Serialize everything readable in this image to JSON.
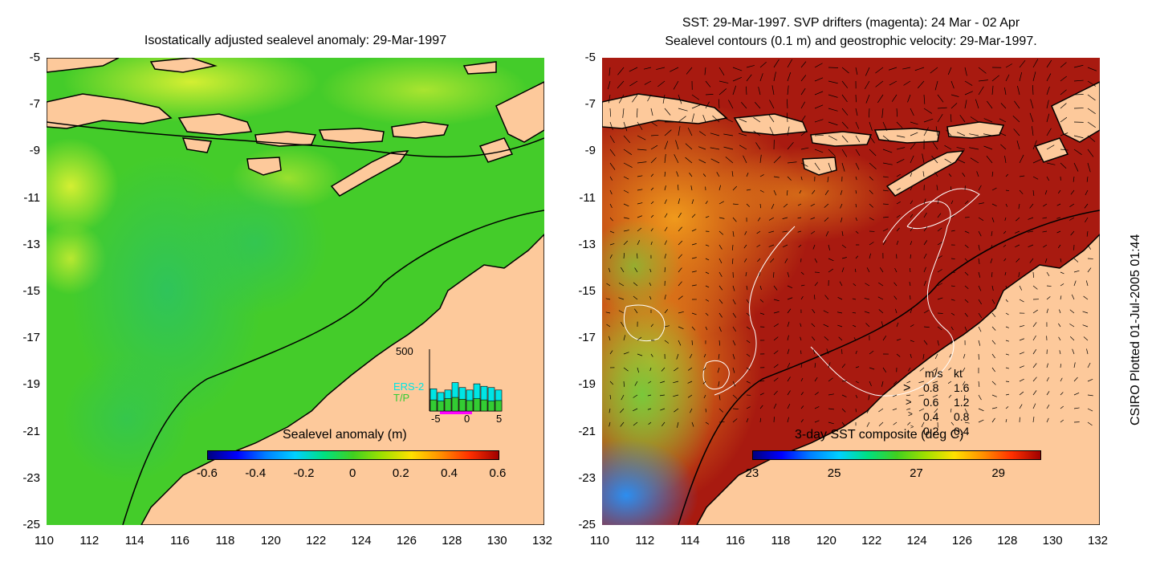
{
  "left_panel": {
    "title": "Isostatically adjusted sealevel anomaly: 29-Mar-1997",
    "colorbar": {
      "label": "Sealevel anomaly (m)",
      "ticks": [
        "-0.6",
        "-0.4",
        "-0.2",
        "0",
        "0.2",
        "0.4",
        "0.6"
      ],
      "range": [
        -0.6,
        0.6
      ]
    },
    "inset": {
      "ymax_label": "500",
      "series_labels": [
        "ERS-2",
        "T/P"
      ],
      "series_colors": [
        "#00e5e5",
        "#33cc33"
      ],
      "x_ticks": [
        "-5",
        "0",
        "5"
      ],
      "ers2_values": [
        180,
        150,
        170,
        230,
        190,
        170,
        220,
        200,
        190,
        170
      ],
      "tp_values": [
        90,
        80,
        100,
        110,
        95,
        85,
        100,
        90,
        80,
        85
      ]
    }
  },
  "right_panel": {
    "title_line1": "SST: 29-Mar-1997. SVP drifters (magenta): 24 Mar - 02 Apr",
    "title_line2": "Sealevel contours (0.1 m) and geostrophic velocity: 29-Mar-1997.",
    "colorbar": {
      "label": "3-day SST composite (deg C)",
      "ticks": [
        "23",
        "25",
        "27",
        "29"
      ],
      "range": [
        23,
        30
      ]
    },
    "speed_key": {
      "header_ms": "m/s",
      "header_kt": "kt",
      "rows": [
        {
          "ms": "0.8",
          "kt": "1.6"
        },
        {
          "ms": "0.6",
          "kt": "1.2"
        },
        {
          "ms": "0.4",
          "kt": "0.8"
        },
        {
          "ms": "0.2",
          "kt": "0.4"
        }
      ]
    }
  },
  "axes": {
    "lat_ticks": [
      "-5",
      "-7",
      "-9",
      "-11",
      "-13",
      "-15",
      "-17",
      "-19",
      "-21",
      "-23",
      "-25"
    ],
    "lon_ticks": [
      "110",
      "112",
      "114",
      "116",
      "118",
      "120",
      "122",
      "124",
      "126",
      "128",
      "130",
      "132"
    ]
  },
  "colors": {
    "land": "#fdc99b",
    "coast": "#000000"
  },
  "credit": "CSIRO Plotted 01-Jul-2005 01:44"
}
